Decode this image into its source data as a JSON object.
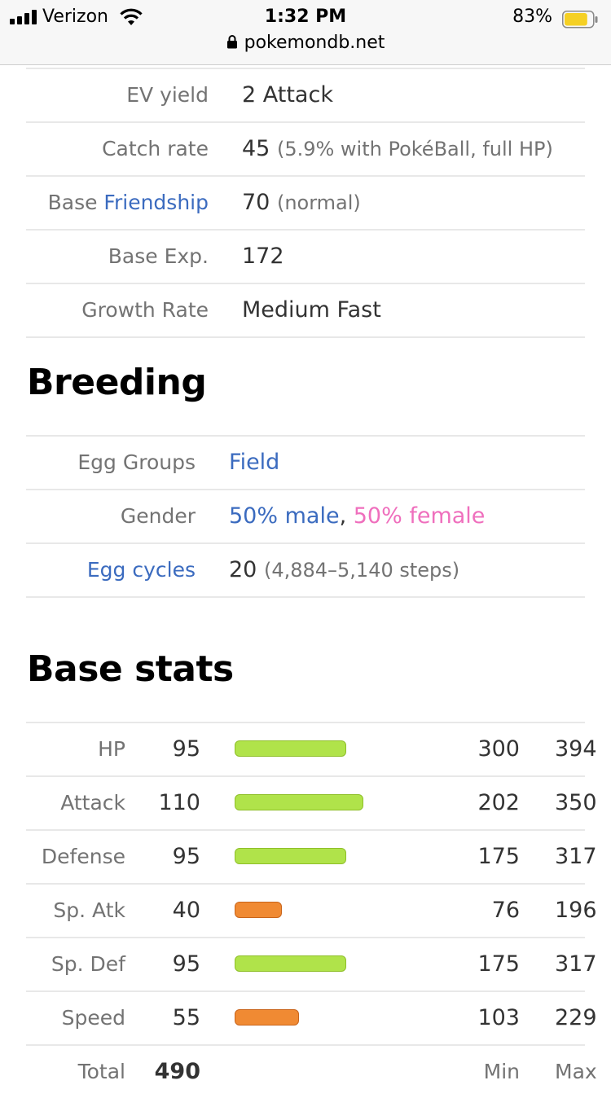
{
  "status_bar": {
    "carrier": "Verizon",
    "time": "1:32 PM",
    "battery_percent": "83%",
    "battery_level": 0.83
  },
  "url_bar": {
    "domain": "pokemondb.net"
  },
  "training": [
    {
      "label": "EV yield",
      "value": "2 Attack",
      "note": ""
    },
    {
      "label": "Catch rate",
      "value": "45",
      "note": "(5.9% with PokéBall, full HP)"
    },
    {
      "label_prefix": "Base ",
      "label_link": "Friendship",
      "value": "70",
      "note": "(normal)"
    },
    {
      "label": "Base Exp.",
      "value": "172",
      "note": ""
    },
    {
      "label": "Growth Rate",
      "value": "Medium Fast",
      "note": ""
    }
  ],
  "breeding": {
    "heading": "Breeding",
    "egg_groups_label": "Egg Groups",
    "egg_groups_value": "Field",
    "gender_label": "Gender",
    "gender_male": "50% male",
    "gender_sep": ",",
    "gender_female": "50% female",
    "egg_cycles_label": "Egg cycles",
    "egg_cycles_value": "20",
    "egg_cycles_note": "(4,884–5,140 steps)"
  },
  "base_stats": {
    "heading": "Base stats",
    "rows": [
      {
        "name": "HP",
        "value": "95",
        "bar": 95,
        "color": "green",
        "min": "300",
        "max": "394"
      },
      {
        "name": "Attack",
        "value": "110",
        "bar": 110,
        "color": "green",
        "min": "202",
        "max": "350"
      },
      {
        "name": "Defense",
        "value": "95",
        "bar": 95,
        "color": "green",
        "min": "175",
        "max": "317"
      },
      {
        "name": "Sp. Atk",
        "value": "40",
        "bar": 40,
        "color": "orange",
        "min": "76",
        "max": "196"
      },
      {
        "name": "Sp. Def",
        "value": "95",
        "bar": 95,
        "color": "green",
        "min": "175",
        "max": "317"
      },
      {
        "name": "Speed",
        "value": "55",
        "bar": 55,
        "color": "orange",
        "min": "103",
        "max": "229"
      }
    ],
    "total_label": "Total",
    "total_value": "490",
    "min_label": "Min",
    "max_label": "Max"
  }
}
